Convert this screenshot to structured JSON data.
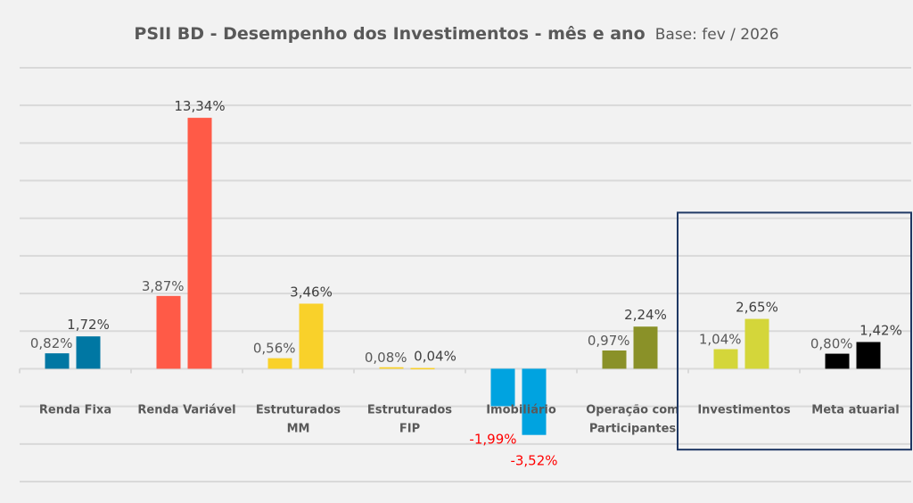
{
  "chart_data": {
    "type": "bar",
    "title": "PSII BD - Desempenho dos Investimentos - mês e ano",
    "subtitle": "Base: fev / 2026",
    "xlabel": "",
    "ylabel": "",
    "ylim": [
      -6,
      16
    ],
    "grid": true,
    "y_gridline_step": 2,
    "legend": "none",
    "highlight_box": {
      "categories": [
        "Investimentos",
        "Meta atuarial"
      ],
      "color": "#1f3864"
    },
    "categories": [
      "Renda Fixa",
      "Renda Variável",
      "Estruturados MM",
      "Estruturados FIP",
      "Imobiliário",
      "Operação com Participantes",
      "Investimentos",
      "Meta atuarial"
    ],
    "category_label_lines": [
      [
        "Renda Fixa"
      ],
      [
        "Renda Variável"
      ],
      [
        "Estruturados",
        "MM"
      ],
      [
        "Estruturados",
        "FIP"
      ],
      [
        "Imobiliário"
      ],
      [
        "Operação com",
        "Participantes"
      ],
      [
        "Investimentos"
      ],
      [
        "Meta atuarial"
      ]
    ],
    "category_colors": [
      "#0077a3",
      "#ff5a47",
      "#f9d12a",
      "#f9d12a",
      "#00a3e0",
      "#8a9128",
      "#d4d63a",
      "#000000"
    ],
    "series": [
      {
        "name": "mês",
        "values": [
          0.82,
          3.87,
          0.56,
          0.08,
          -1.99,
          0.97,
          1.04,
          0.8
        ],
        "labels": [
          "0,82%",
          "3,87%",
          "0,56%",
          "0,08%",
          "-1,99%",
          "0,97%",
          "1,04%",
          "0,80%"
        ]
      },
      {
        "name": "ano",
        "values": [
          1.72,
          13.34,
          3.46,
          0.04,
          -3.52,
          2.24,
          2.65,
          1.42
        ],
        "labels": [
          "1,72%",
          "13,34%",
          "3,46%",
          "0,04%",
          "-3,52%",
          "2,24%",
          "2,65%",
          "1,42%"
        ]
      }
    ],
    "label_colors": {
      "positive_month": "#595959",
      "positive_year": "#404040",
      "negative": "#ff0000"
    }
  }
}
